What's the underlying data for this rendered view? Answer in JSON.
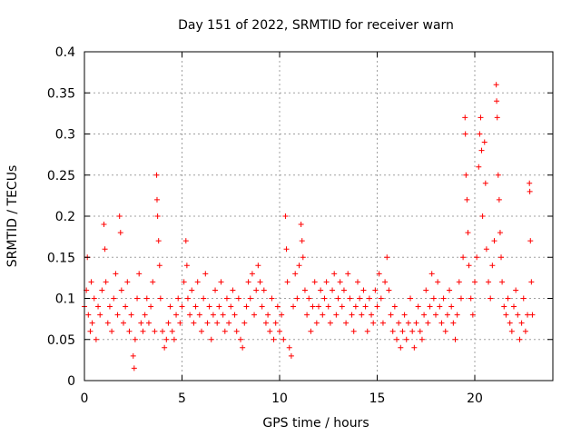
{
  "chart_data": {
    "type": "scatter",
    "title": "Day 151 of 2022, SRMTID for receiver warn",
    "xlabel": "GPS time / hours",
    "ylabel": "SRMTID / TECUs",
    "xlim": [
      0,
      24
    ],
    "ylim": [
      0,
      0.4
    ],
    "xticks": [
      0,
      5,
      10,
      15,
      20
    ],
    "yticks": [
      0,
      0.05,
      0.1,
      0.15,
      0.2,
      0.25,
      0.3,
      0.35,
      0.4
    ],
    "xtick_labels": [
      "0",
      "5",
      "10",
      "15",
      "20"
    ],
    "ytick_labels": [
      "0",
      "0.05",
      "0.1",
      "0.15",
      "0.2",
      "0.25",
      "0.3",
      "0.35",
      "0.4"
    ],
    "grid": true,
    "marker": "+",
    "color": "#ff0000",
    "series": [
      {
        "name": "SRMTID",
        "points": [
          [
            0.0,
            0.09
          ],
          [
            0.1,
            0.11
          ],
          [
            0.15,
            0.15
          ],
          [
            0.2,
            0.08
          ],
          [
            0.3,
            0.06
          ],
          [
            0.35,
            0.12
          ],
          [
            0.4,
            0.07
          ],
          [
            0.5,
            0.1
          ],
          [
            0.6,
            0.05
          ],
          [
            0.7,
            0.09
          ],
          [
            0.8,
            0.08
          ],
          [
            0.9,
            0.11
          ],
          [
            1.0,
            0.19
          ],
          [
            1.05,
            0.16
          ],
          [
            1.1,
            0.12
          ],
          [
            1.2,
            0.07
          ],
          [
            1.3,
            0.09
          ],
          [
            1.4,
            0.06
          ],
          [
            1.5,
            0.1
          ],
          [
            1.6,
            0.13
          ],
          [
            1.7,
            0.08
          ],
          [
            1.8,
            0.2
          ],
          [
            1.85,
            0.18
          ],
          [
            1.9,
            0.11
          ],
          [
            2.0,
            0.07
          ],
          [
            2.1,
            0.09
          ],
          [
            2.2,
            0.12
          ],
          [
            2.3,
            0.06
          ],
          [
            2.4,
            0.08
          ],
          [
            2.5,
            0.03
          ],
          [
            2.55,
            0.015
          ],
          [
            2.6,
            0.05
          ],
          [
            2.7,
            0.1
          ],
          [
            2.8,
            0.13
          ],
          [
            2.9,
            0.07
          ],
          [
            3.0,
            0.06
          ],
          [
            3.1,
            0.08
          ],
          [
            3.2,
            0.1
          ],
          [
            3.3,
            0.07
          ],
          [
            3.4,
            0.09
          ],
          [
            3.5,
            0.12
          ],
          [
            3.6,
            0.06
          ],
          [
            3.7,
            0.25
          ],
          [
            3.72,
            0.22
          ],
          [
            3.75,
            0.2
          ],
          [
            3.8,
            0.17
          ],
          [
            3.85,
            0.14
          ],
          [
            3.9,
            0.1
          ],
          [
            4.0,
            0.06
          ],
          [
            4.1,
            0.04
          ],
          [
            4.2,
            0.05
          ],
          [
            4.3,
            0.07
          ],
          [
            4.4,
            0.09
          ],
          [
            4.5,
            0.06
          ],
          [
            4.6,
            0.05
          ],
          [
            4.7,
            0.08
          ],
          [
            4.8,
            0.1
          ],
          [
            4.9,
            0.07
          ],
          [
            5.0,
            0.09
          ],
          [
            5.1,
            0.12
          ],
          [
            5.2,
            0.17
          ],
          [
            5.25,
            0.14
          ],
          [
            5.3,
            0.1
          ],
          [
            5.4,
            0.08
          ],
          [
            5.5,
            0.11
          ],
          [
            5.6,
            0.07
          ],
          [
            5.7,
            0.09
          ],
          [
            5.8,
            0.12
          ],
          [
            5.9,
            0.08
          ],
          [
            6.0,
            0.06
          ],
          [
            6.1,
            0.1
          ],
          [
            6.2,
            0.13
          ],
          [
            6.3,
            0.07
          ],
          [
            6.4,
            0.09
          ],
          [
            6.5,
            0.05
          ],
          [
            6.6,
            0.08
          ],
          [
            6.7,
            0.11
          ],
          [
            6.8,
            0.07
          ],
          [
            6.9,
            0.09
          ],
          [
            7.0,
            0.12
          ],
          [
            7.1,
            0.08
          ],
          [
            7.2,
            0.06
          ],
          [
            7.3,
            0.1
          ],
          [
            7.4,
            0.07
          ],
          [
            7.5,
            0.09
          ],
          [
            7.6,
            0.11
          ],
          [
            7.7,
            0.08
          ],
          [
            7.8,
            0.06
          ],
          [
            7.9,
            0.1
          ],
          [
            8.0,
            0.05
          ],
          [
            8.1,
            0.04
          ],
          [
            8.2,
            0.07
          ],
          [
            8.3,
            0.09
          ],
          [
            8.4,
            0.12
          ],
          [
            8.5,
            0.1
          ],
          [
            8.6,
            0.13
          ],
          [
            8.7,
            0.08
          ],
          [
            8.8,
            0.11
          ],
          [
            8.9,
            0.14
          ],
          [
            9.0,
            0.12
          ],
          [
            9.1,
            0.09
          ],
          [
            9.2,
            0.11
          ],
          [
            9.3,
            0.07
          ],
          [
            9.4,
            0.08
          ],
          [
            9.5,
            0.06
          ],
          [
            9.6,
            0.1
          ],
          [
            9.7,
            0.05
          ],
          [
            9.8,
            0.07
          ],
          [
            9.9,
            0.09
          ],
          [
            10.0,
            0.06
          ],
          [
            10.1,
            0.08
          ],
          [
            10.2,
            0.05
          ],
          [
            10.3,
            0.2
          ],
          [
            10.35,
            0.16
          ],
          [
            10.4,
            0.12
          ],
          [
            10.5,
            0.04
          ],
          [
            10.6,
            0.03
          ],
          [
            10.7,
            0.09
          ],
          [
            10.8,
            0.13
          ],
          [
            10.9,
            0.1
          ],
          [
            11.0,
            0.14
          ],
          [
            11.1,
            0.19
          ],
          [
            11.15,
            0.17
          ],
          [
            11.2,
            0.15
          ],
          [
            11.3,
            0.11
          ],
          [
            11.4,
            0.08
          ],
          [
            11.5,
            0.1
          ],
          [
            11.6,
            0.06
          ],
          [
            11.7,
            0.09
          ],
          [
            11.8,
            0.12
          ],
          [
            11.9,
            0.07
          ],
          [
            12.0,
            0.09
          ],
          [
            12.1,
            0.11
          ],
          [
            12.2,
            0.08
          ],
          [
            12.3,
            0.1
          ],
          [
            12.4,
            0.12
          ],
          [
            12.5,
            0.09
          ],
          [
            12.6,
            0.07
          ],
          [
            12.7,
            0.11
          ],
          [
            12.8,
            0.13
          ],
          [
            12.9,
            0.08
          ],
          [
            13.0,
            0.1
          ],
          [
            13.1,
            0.12
          ],
          [
            13.2,
            0.09
          ],
          [
            13.3,
            0.11
          ],
          [
            13.4,
            0.07
          ],
          [
            13.5,
            0.13
          ],
          [
            13.6,
            0.1
          ],
          [
            13.7,
            0.08
          ],
          [
            13.8,
            0.06
          ],
          [
            13.9,
            0.09
          ],
          [
            14.0,
            0.12
          ],
          [
            14.1,
            0.1
          ],
          [
            14.2,
            0.08
          ],
          [
            14.3,
            0.11
          ],
          [
            14.4,
            0.09
          ],
          [
            14.5,
            0.06
          ],
          [
            14.6,
            0.1
          ],
          [
            14.7,
            0.08
          ],
          [
            14.8,
            0.07
          ],
          [
            14.9,
            0.11
          ],
          [
            15.0,
            0.09
          ],
          [
            15.1,
            0.13
          ],
          [
            15.2,
            0.1
          ],
          [
            15.3,
            0.07
          ],
          [
            15.4,
            0.12
          ],
          [
            15.5,
            0.15
          ],
          [
            15.6,
            0.11
          ],
          [
            15.7,
            0.08
          ],
          [
            15.8,
            0.06
          ],
          [
            15.9,
            0.09
          ],
          [
            16.0,
            0.05
          ],
          [
            16.1,
            0.07
          ],
          [
            16.2,
            0.04
          ],
          [
            16.3,
            0.06
          ],
          [
            16.4,
            0.08
          ],
          [
            16.5,
            0.05
          ],
          [
            16.6,
            0.07
          ],
          [
            16.7,
            0.1
          ],
          [
            16.8,
            0.06
          ],
          [
            16.9,
            0.04
          ],
          [
            17.0,
            0.07
          ],
          [
            17.1,
            0.09
          ],
          [
            17.2,
            0.06
          ],
          [
            17.3,
            0.05
          ],
          [
            17.4,
            0.08
          ],
          [
            17.5,
            0.11
          ],
          [
            17.6,
            0.07
          ],
          [
            17.7,
            0.09
          ],
          [
            17.8,
            0.13
          ],
          [
            17.9,
            0.1
          ],
          [
            18.0,
            0.08
          ],
          [
            18.1,
            0.12
          ],
          [
            18.2,
            0.09
          ],
          [
            18.3,
            0.07
          ],
          [
            18.4,
            0.1
          ],
          [
            18.5,
            0.06
          ],
          [
            18.6,
            0.08
          ],
          [
            18.7,
            0.11
          ],
          [
            18.8,
            0.09
          ],
          [
            18.9,
            0.07
          ],
          [
            19.0,
            0.05
          ],
          [
            19.1,
            0.08
          ],
          [
            19.2,
            0.12
          ],
          [
            19.3,
            0.1
          ],
          [
            19.4,
            0.15
          ],
          [
            19.5,
            0.32
          ],
          [
            19.52,
            0.3
          ],
          [
            19.55,
            0.25
          ],
          [
            19.6,
            0.22
          ],
          [
            19.65,
            0.18
          ],
          [
            19.7,
            0.14
          ],
          [
            19.8,
            0.1
          ],
          [
            19.9,
            0.08
          ],
          [
            20.0,
            0.12
          ],
          [
            20.1,
            0.15
          ],
          [
            20.2,
            0.26
          ],
          [
            20.25,
            0.3
          ],
          [
            20.3,
            0.32
          ],
          [
            20.35,
            0.28
          ],
          [
            20.4,
            0.2
          ],
          [
            20.5,
            0.29
          ],
          [
            20.55,
            0.24
          ],
          [
            20.6,
            0.16
          ],
          [
            20.7,
            0.12
          ],
          [
            20.8,
            0.1
          ],
          [
            20.9,
            0.14
          ],
          [
            21.0,
            0.17
          ],
          [
            21.1,
            0.36
          ],
          [
            21.12,
            0.34
          ],
          [
            21.15,
            0.32
          ],
          [
            21.2,
            0.25
          ],
          [
            21.25,
            0.22
          ],
          [
            21.3,
            0.18
          ],
          [
            21.35,
            0.15
          ],
          [
            21.4,
            0.12
          ],
          [
            21.5,
            0.09
          ],
          [
            21.6,
            0.08
          ],
          [
            21.7,
            0.1
          ],
          [
            21.8,
            0.07
          ],
          [
            21.9,
            0.06
          ],
          [
            22.0,
            0.09
          ],
          [
            22.1,
            0.11
          ],
          [
            22.2,
            0.08
          ],
          [
            22.3,
            0.05
          ],
          [
            22.4,
            0.07
          ],
          [
            22.5,
            0.1
          ],
          [
            22.6,
            0.06
          ],
          [
            22.7,
            0.08
          ],
          [
            22.8,
            0.24
          ],
          [
            22.82,
            0.23
          ],
          [
            22.85,
            0.17
          ],
          [
            22.9,
            0.12
          ],
          [
            22.95,
            0.08
          ]
        ]
      }
    ]
  }
}
